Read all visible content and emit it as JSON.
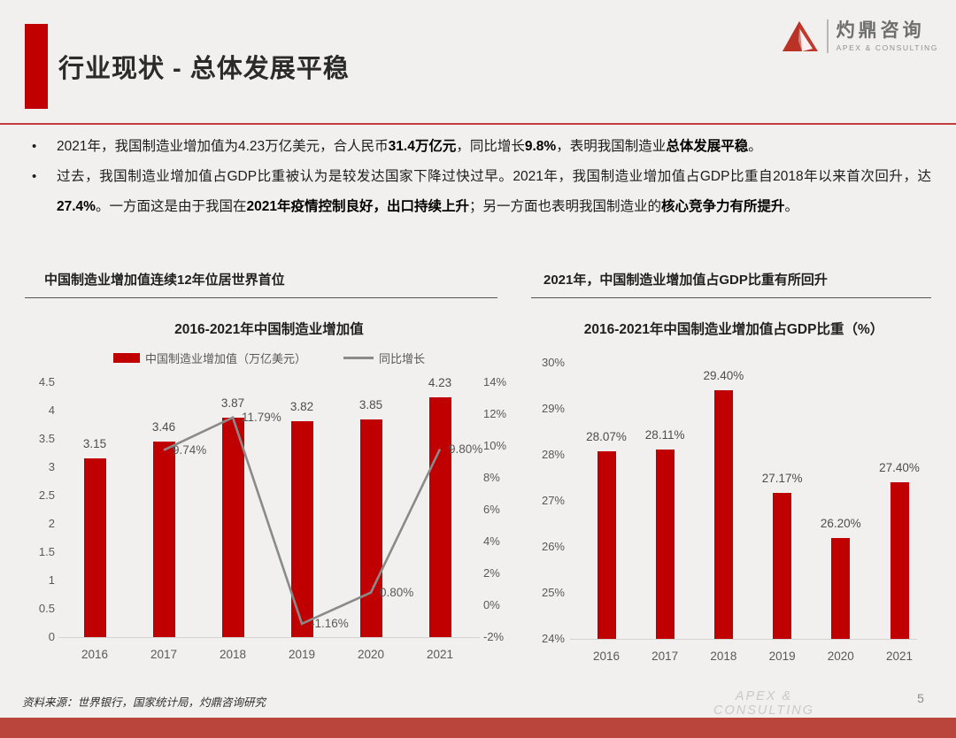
{
  "header": {
    "title": "行业现状 - 总体发展平稳",
    "logo": {
      "name": "灼鼎咨询",
      "subtitle": "APEX & CONSULTING"
    }
  },
  "bullets": [
    {
      "segments": [
        {
          "t": "2021年，我国制造业增加值为4.23万亿美元，合人民币",
          "b": false
        },
        {
          "t": "31.4万亿元",
          "b": true
        },
        {
          "t": "，同比增长",
          "b": false
        },
        {
          "t": "9.8%",
          "b": true
        },
        {
          "t": "，表明我国制造业",
          "b": false
        },
        {
          "t": "总体发展平稳",
          "b": true
        },
        {
          "t": "。",
          "b": false
        }
      ]
    },
    {
      "segments": [
        {
          "t": "过去，我国制造业增加值占GDP比重被认为是较发达国家下降过快过早。2021年，我国制造业增加值占GDP比重自2018年以来首次回升，达",
          "b": false
        },
        {
          "t": "27.4%",
          "b": true
        },
        {
          "t": "。一方面这是由于我国在",
          "b": false
        },
        {
          "t": "2021年疫情控制良好，出口持续上升",
          "b": true
        },
        {
          "t": "；另一方面也表明我国制造业的",
          "b": false
        },
        {
          "t": "核心竞争力有所提升",
          "b": true
        },
        {
          "t": "。",
          "b": false
        }
      ]
    }
  ],
  "chart_data": [
    {
      "type": "bar+line",
      "section_header": "中国制造业增加值连续12年位居世界首位",
      "title": "2016-2021年中国制造业增加值",
      "categories": [
        "2016",
        "2017",
        "2018",
        "2019",
        "2020",
        "2021"
      ],
      "series": [
        {
          "name": "中国制造业增加值（万亿美元）",
          "type": "bar",
          "color": "#C00000",
          "values": [
            3.15,
            3.46,
            3.87,
            3.82,
            3.85,
            4.23
          ],
          "labels": [
            "3.15",
            "3.46",
            "3.87",
            "3.82",
            "3.85",
            "4.23"
          ]
        },
        {
          "name": "同比增长",
          "type": "line",
          "color": "#8a8a8a",
          "values": [
            null,
            9.74,
            11.79,
            -1.16,
            0.8,
            9.8
          ],
          "labels": [
            null,
            "9.74%",
            "11.79%",
            "-1.16%",
            "0.80%",
            "9.80%"
          ]
        }
      ],
      "y_left": {
        "min": 0,
        "max": 4.5,
        "ticks": [
          "4.5",
          "4",
          "3.5",
          "3",
          "2.5",
          "2",
          "1.5",
          "1",
          "0.5",
          "0"
        ]
      },
      "y_right": {
        "min": -2,
        "max": 14,
        "ticks": [
          "14%",
          "12%",
          "10%",
          "8%",
          "6%",
          "4%",
          "2%",
          "0%",
          "-2%"
        ]
      },
      "grid": false,
      "legend_position": "top"
    },
    {
      "type": "bar",
      "section_header": "2021年，中国制造业增加值占GDP比重有所回升",
      "title": "2016-2021年中国制造业增加值占GDP比重（%）",
      "categories": [
        "2016",
        "2017",
        "2018",
        "2019",
        "2020",
        "2021"
      ],
      "values": [
        28.07,
        28.11,
        29.4,
        27.17,
        26.2,
        27.4
      ],
      "labels": [
        "28.07%",
        "28.11%",
        "29.40%",
        "27.17%",
        "26.20%",
        "27.40%"
      ],
      "bar_color": "#C00000",
      "ylim": [
        24,
        30
      ],
      "yticks": [
        "30%",
        "29%",
        "28%",
        "27%",
        "26%",
        "25%",
        "24%"
      ],
      "grid": false
    }
  ],
  "footer": {
    "source": "资料来源：世界银行，国家统计局，灼鼎咨询研究",
    "brand": "APEX & CONSULTING",
    "page": "5"
  },
  "colors": {
    "accent_red": "#C00000",
    "header_rule_red": "#c43c3c",
    "bottom_bar_red": "#b9453c",
    "line_gray": "#8a8a8a"
  }
}
